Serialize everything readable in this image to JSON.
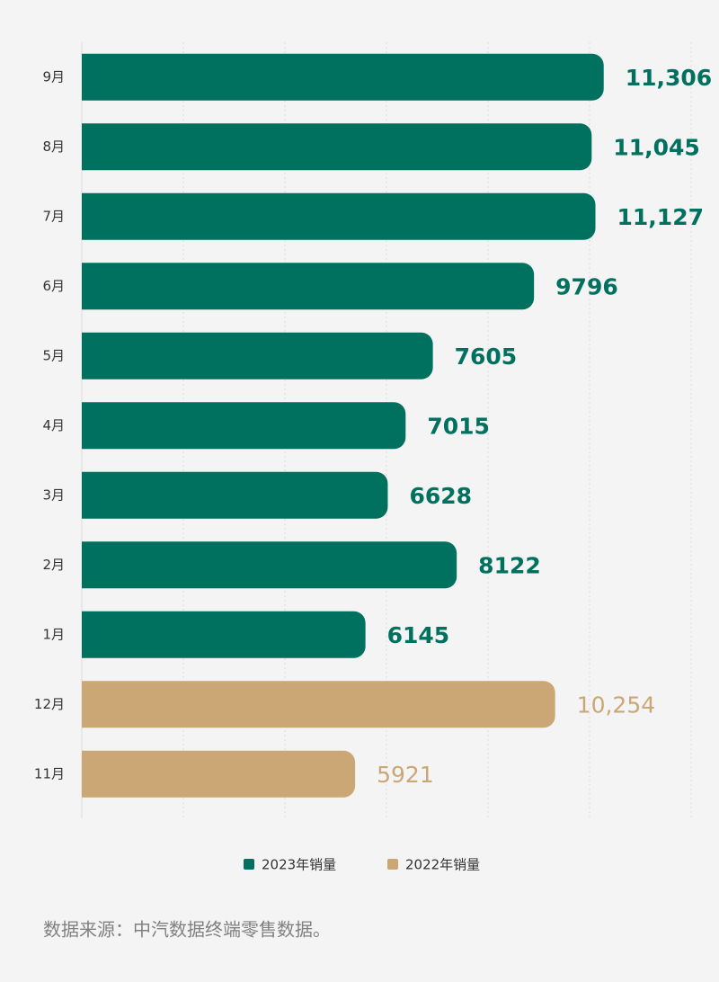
{
  "chart_data": {
    "type": "bar",
    "orientation": "horizontal",
    "categories": [
      "9月",
      "8月",
      "7月",
      "6月",
      "5月",
      "4月",
      "3月",
      "2月",
      "1月",
      "12月",
      "11月"
    ],
    "series": [
      {
        "name": "2023年销量",
        "color": "#00705f",
        "values": [
          11306,
          11045,
          11127,
          9796,
          7605,
          7015,
          6628,
          8122,
          6145,
          null,
          null
        ],
        "value_labels": [
          "11,306",
          "11,045",
          "11,127",
          "9796",
          "7605",
          "7015",
          "6628",
          "8122",
          "6145",
          null,
          null
        ]
      },
      {
        "name": "2022年销量",
        "color": "#cba775",
        "values": [
          null,
          null,
          null,
          null,
          null,
          null,
          null,
          null,
          null,
          10254,
          5921
        ],
        "value_labels": [
          null,
          null,
          null,
          null,
          null,
          null,
          null,
          null,
          null,
          "10,254",
          "5921"
        ]
      }
    ],
    "xlim": [
      0,
      13200
    ],
    "xticks": [
      0,
      2200,
      4400,
      6600,
      8800,
      11000,
      13200
    ],
    "grid": true,
    "legend": "bottom",
    "source": "数据来源：中汽数据终端零售数据。"
  }
}
